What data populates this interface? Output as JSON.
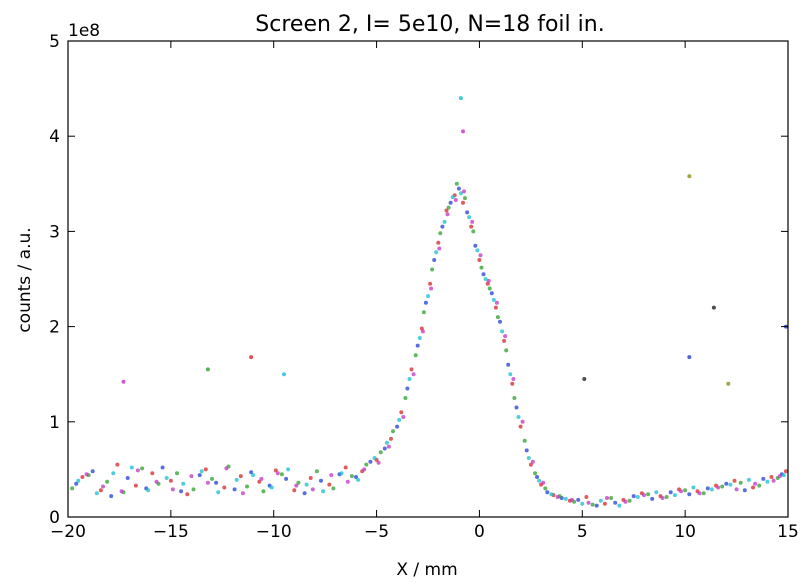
{
  "chart_data": {
    "type": "scatter",
    "title": "Screen 2, I= 5e10, N=18 foil in.",
    "xlabel": "X / mm",
    "ylabel": "counts / a.u.",
    "y_offset_label": "1e8",
    "xlim": [
      -20,
      15
    ],
    "ylim": [
      0,
      5
    ],
    "y_scale_factor": 100000000,
    "xticks": [
      -20,
      -15,
      -10,
      -5,
      0,
      5,
      10,
      15
    ],
    "xtick_labels": [
      "−20",
      "−15",
      "−10",
      "−5",
      "0",
      "5",
      "10",
      "15"
    ],
    "yticks": [
      0,
      1,
      2,
      3,
      4,
      5
    ],
    "ytick_labels": [
      "0",
      "1",
      "2",
      "3",
      "4",
      "5"
    ],
    "grid": false,
    "legend": "none",
    "marker_colors": [
      "#1f3fd6",
      "#d62728",
      "#2ca02c",
      "#17becf",
      "#c233c2",
      "#8c8c1a",
      "#222222"
    ],
    "series": [
      {
        "color": "#1f3fd6",
        "x": [
          -19.6,
          -18.8,
          -17.9,
          -17.1,
          -16.2,
          -15.4,
          -14.5,
          -13.6,
          -12.8,
          -11.9,
          -11.1,
          -10.2,
          -9.4,
          -8.5,
          -7.7,
          -6.8,
          -6.0,
          -5.3,
          -4.6,
          -4.0,
          -3.5,
          -3.0,
          -2.6,
          -2.2,
          -1.8,
          -1.4,
          -1.0,
          -0.6,
          -0.2,
          0.2,
          0.6,
          1.0,
          1.4,
          1.8,
          2.3,
          2.8,
          3.3,
          4.0,
          4.8,
          5.7,
          6.6,
          7.5,
          8.4,
          9.3,
          10.2,
          11.1,
          12.0,
          12.9,
          13.8,
          14.7
        ],
        "y": [
          0.35,
          0.48,
          0.22,
          0.41,
          0.3,
          0.52,
          0.27,
          0.44,
          0.36,
          0.29,
          0.47,
          0.33,
          0.4,
          0.25,
          0.38,
          0.45,
          0.42,
          0.58,
          0.72,
          0.95,
          1.35,
          1.8,
          2.25,
          2.7,
          3.05,
          3.3,
          3.45,
          3.2,
          2.85,
          2.55,
          2.35,
          2.05,
          1.6,
          1.15,
          0.7,
          0.42,
          0.26,
          0.2,
          0.18,
          0.12,
          0.15,
          0.22,
          0.19,
          0.26,
          0.24,
          0.3,
          0.35,
          0.28,
          0.4,
          0.45
        ]
      },
      {
        "color": "#d62728",
        "x": [
          -19.3,
          -18.4,
          -17.6,
          -16.7,
          -15.9,
          -15.0,
          -14.2,
          -13.3,
          -12.4,
          -11.6,
          -10.7,
          -9.9,
          -9.0,
          -8.2,
          -7.3,
          -6.5,
          -5.7,
          -5.0,
          -4.3,
          -3.8,
          -3.3,
          -2.8,
          -2.4,
          -2.0,
          -1.6,
          -1.2,
          -0.8,
          -0.4,
          0.0,
          0.4,
          0.8,
          1.2,
          1.6,
          2.0,
          2.5,
          3.0,
          3.6,
          4.4,
          5.2,
          6.1,
          7.0,
          7.9,
          8.8,
          9.7,
          10.6,
          11.5,
          12.4,
          13.3,
          14.2,
          14.9
        ],
        "y": [
          0.42,
          0.28,
          0.55,
          0.33,
          0.46,
          0.38,
          0.24,
          0.5,
          0.31,
          0.43,
          0.37,
          0.49,
          0.28,
          0.41,
          0.34,
          0.52,
          0.48,
          0.6,
          0.82,
          1.1,
          1.55,
          1.98,
          2.45,
          2.88,
          3.22,
          3.38,
          3.3,
          3.05,
          2.7,
          2.45,
          2.2,
          1.85,
          1.4,
          0.95,
          0.55,
          0.34,
          0.23,
          0.17,
          0.21,
          0.14,
          0.18,
          0.25,
          0.22,
          0.29,
          0.27,
          0.33,
          0.38,
          0.31,
          0.42,
          0.48
        ]
      },
      {
        "color": "#2ca02c",
        "x": [
          -19.8,
          -19.0,
          -18.1,
          -17.3,
          -16.4,
          -15.6,
          -14.7,
          -13.9,
          -13.0,
          -12.2,
          -11.3,
          -10.5,
          -9.6,
          -8.8,
          -7.9,
          -7.1,
          -6.2,
          -5.5,
          -4.8,
          -4.2,
          -3.6,
          -3.1,
          -2.7,
          -2.3,
          -1.9,
          -1.5,
          -1.1,
          -0.7,
          -0.3,
          0.1,
          0.5,
          0.9,
          1.3,
          1.7,
          2.2,
          2.7,
          3.2,
          3.9,
          4.6,
          5.5,
          6.4,
          7.3,
          8.2,
          9.1,
          10.0,
          10.9,
          11.8,
          12.7,
          13.6,
          14.5
        ],
        "y": [
          0.3,
          0.44,
          0.37,
          0.26,
          0.51,
          0.35,
          0.46,
          0.29,
          0.4,
          0.53,
          0.32,
          0.27,
          0.45,
          0.36,
          0.48,
          0.3,
          0.43,
          0.55,
          0.68,
          0.9,
          1.25,
          1.7,
          2.15,
          2.6,
          2.98,
          3.25,
          3.5,
          3.35,
          3.0,
          2.62,
          2.4,
          2.1,
          1.75,
          1.25,
          0.8,
          0.46,
          0.3,
          0.22,
          0.16,
          0.13,
          0.2,
          0.17,
          0.24,
          0.21,
          0.28,
          0.25,
          0.32,
          0.36,
          0.33,
          0.41
        ]
      },
      {
        "color": "#17becf",
        "x": [
          -19.5,
          -18.6,
          -17.8,
          -16.9,
          -16.1,
          -15.2,
          -14.4,
          -13.5,
          -12.7,
          -11.8,
          -11.0,
          -10.1,
          -9.3,
          -8.4,
          -7.6,
          -6.7,
          -5.9,
          -5.1,
          -4.5,
          -3.9,
          -3.4,
          -2.9,
          -2.5,
          -2.1,
          -1.7,
          -1.3,
          -0.9,
          -0.5,
          -0.1,
          0.3,
          0.7,
          1.1,
          1.5,
          1.9,
          2.4,
          2.9,
          3.5,
          4.2,
          5.0,
          5.9,
          6.8,
          7.7,
          8.6,
          9.5,
          10.4,
          11.3,
          12.2,
          13.1,
          14.0,
          14.8
        ],
        "y": [
          0.38,
          0.25,
          0.46,
          0.52,
          0.28,
          0.41,
          0.35,
          0.48,
          0.26,
          0.39,
          0.44,
          0.31,
          0.5,
          0.34,
          0.27,
          0.46,
          0.39,
          0.62,
          0.78,
          1.02,
          1.45,
          1.88,
          2.32,
          2.78,
          3.1,
          3.36,
          3.4,
          3.15,
          2.8,
          2.5,
          2.28,
          1.95,
          1.5,
          1.05,
          0.62,
          0.38,
          0.24,
          0.19,
          0.14,
          0.17,
          0.12,
          0.21,
          0.26,
          0.23,
          0.31,
          0.29,
          0.34,
          0.39,
          0.37,
          0.44
        ]
      },
      {
        "color": "#c233c2",
        "x": [
          -19.1,
          -18.3,
          -17.4,
          -16.6,
          -15.7,
          -14.9,
          -14.0,
          -13.2,
          -12.3,
          -11.5,
          -10.6,
          -9.8,
          -8.9,
          -8.1,
          -7.2,
          -6.4,
          -5.6,
          -4.9,
          -4.4,
          -3.7,
          -3.2,
          -2.75,
          -2.35,
          -1.95,
          -1.55,
          -1.15,
          -0.75,
          -0.35,
          0.05,
          0.45,
          0.85,
          1.25,
          1.65,
          2.1,
          2.6,
          3.1,
          3.8,
          4.5,
          5.3,
          6.2,
          7.1,
          8.0,
          8.9,
          9.8,
          10.7,
          11.6,
          12.5,
          13.4,
          14.3,
          14.6
        ],
        "y": [
          0.45,
          0.32,
          0.27,
          0.49,
          0.37,
          0.29,
          0.43,
          0.36,
          0.51,
          0.25,
          0.4,
          0.46,
          0.33,
          0.29,
          0.44,
          0.37,
          0.5,
          0.57,
          0.74,
          1.05,
          1.5,
          1.95,
          2.4,
          2.82,
          3.18,
          3.33,
          3.42,
          3.1,
          2.75,
          2.48,
          2.25,
          1.9,
          1.45,
          1.0,
          0.58,
          0.36,
          0.21,
          0.18,
          0.15,
          0.2,
          0.16,
          0.23,
          0.2,
          0.27,
          0.25,
          0.31,
          0.29,
          0.35,
          0.38,
          0.43
        ]
      }
    ],
    "outliers": [
      {
        "x": -0.9,
        "y": 4.4
      },
      {
        "x": -0.8,
        "y": 4.05
      },
      {
        "x": 10.2,
        "y": 3.58
      },
      {
        "x": 11.4,
        "y": 2.2
      },
      {
        "x": 10.2,
        "y": 1.68
      },
      {
        "x": -11.1,
        "y": 1.68
      },
      {
        "x": -13.2,
        "y": 1.55
      },
      {
        "x": -9.5,
        "y": 1.5
      },
      {
        "x": -17.3,
        "y": 1.42
      },
      {
        "x": 12.1,
        "y": 1.4
      },
      {
        "x": 5.1,
        "y": 1.45
      },
      {
        "x": 14.9,
        "y": 2.0
      }
    ]
  }
}
